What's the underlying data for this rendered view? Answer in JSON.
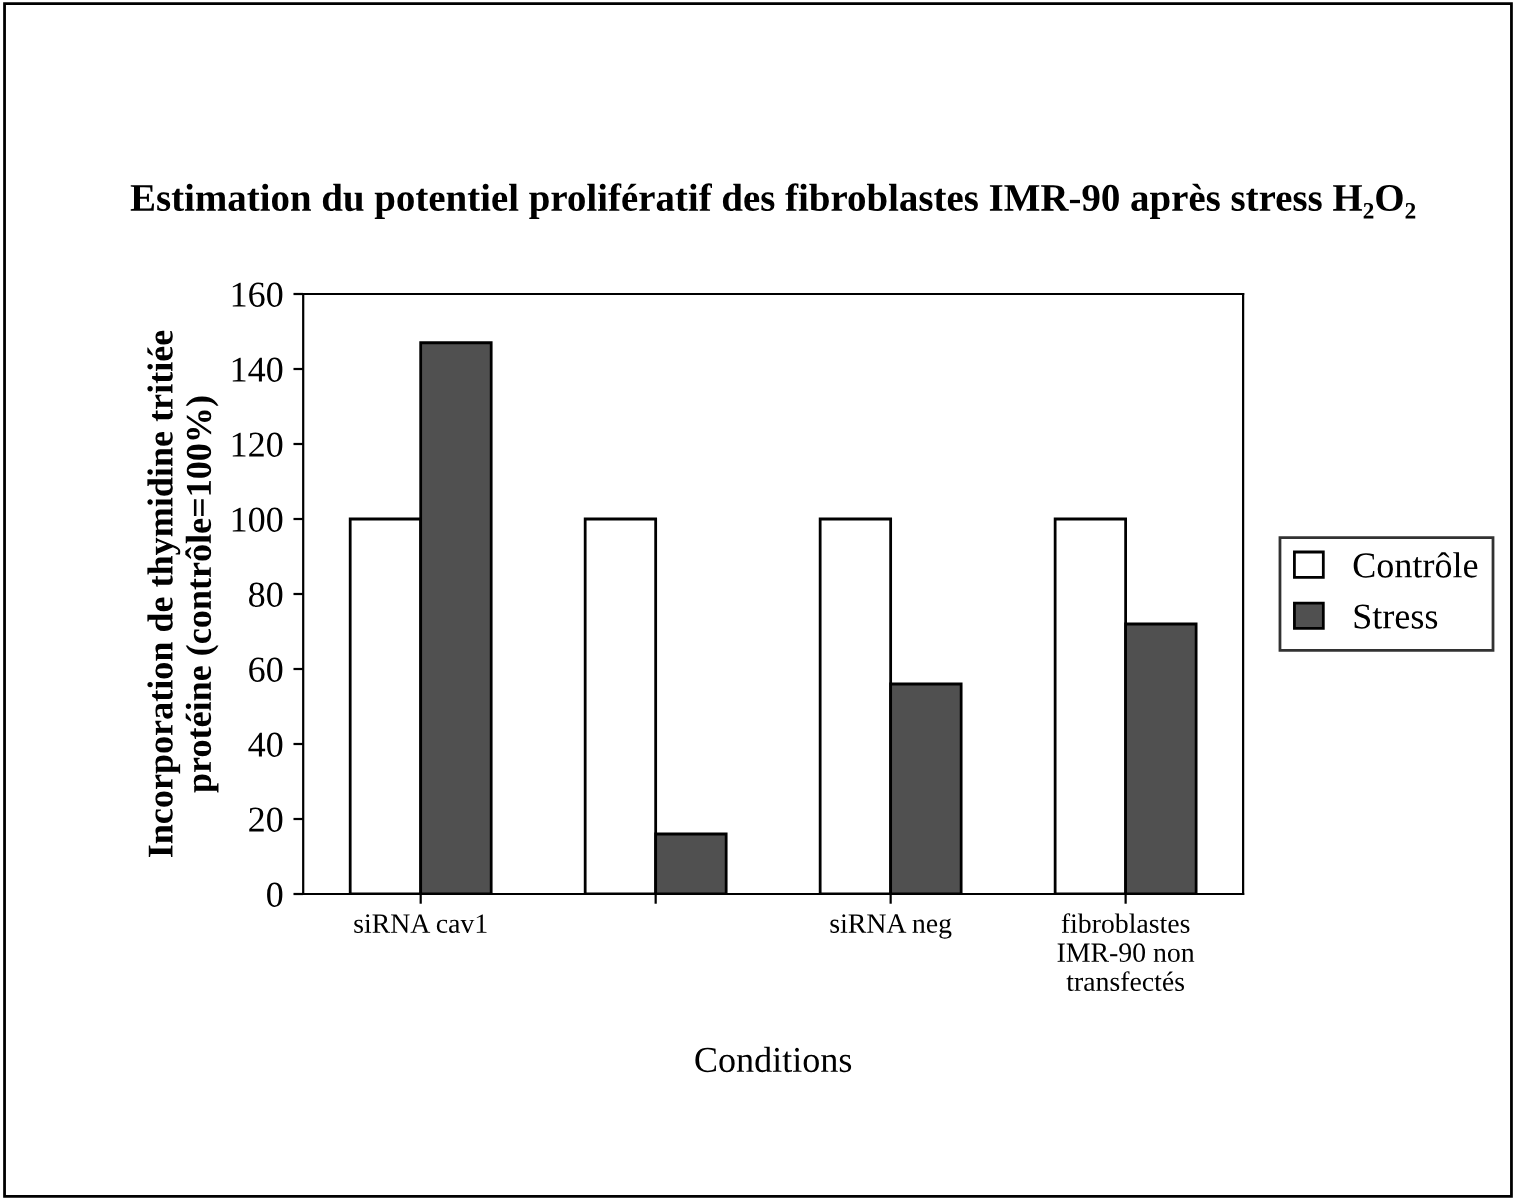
{
  "chart_data": {
    "type": "bar",
    "title": "Estimation du potentiel prolifératif des fibroblastes IMR-90 après stress H₂O₂",
    "xlabel": "Conditions",
    "ylabel": "Incorporation de thymidine tritiée\nprotéine (contrôle=100%)",
    "categories": [
      "siRNA cav1",
      null,
      "siRNA neg",
      "fibroblastes\nIMR-90 non\ntransfectés"
    ],
    "series": [
      {
        "name": "Contrôle",
        "color": "#ffffff",
        "values": [
          100,
          100,
          100,
          100
        ]
      },
      {
        "name": "Stress",
        "color": "#505050",
        "values": [
          147,
          16,
          56,
          72
        ]
      }
    ],
    "ylim": [
      0,
      160
    ],
    "yticks": [
      0,
      20,
      40,
      60,
      80,
      100,
      120,
      140,
      160
    ],
    "grid": false,
    "legend": "right"
  }
}
